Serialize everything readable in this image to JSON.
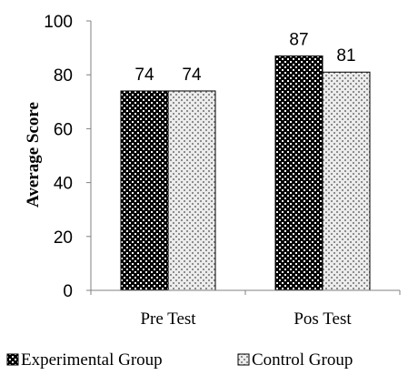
{
  "chart_data": {
    "type": "bar",
    "categories": [
      "Pre Test",
      "Pos Test"
    ],
    "series": [
      {
        "name": "Experimental Group",
        "values": [
          74,
          87
        ],
        "pattern": "dark-dots",
        "color": "#000000"
      },
      {
        "name": "Control Group",
        "values": [
          74,
          81
        ],
        "pattern": "light-dots",
        "color": "#d9d9d9"
      }
    ],
    "ylabel": "Average Score",
    "xlabel": "",
    "ylim": [
      0,
      100
    ],
    "yticks": [
      0,
      20,
      40,
      60,
      80,
      100
    ],
    "data_labels": true,
    "grid": false,
    "legend_position": "bottom"
  }
}
